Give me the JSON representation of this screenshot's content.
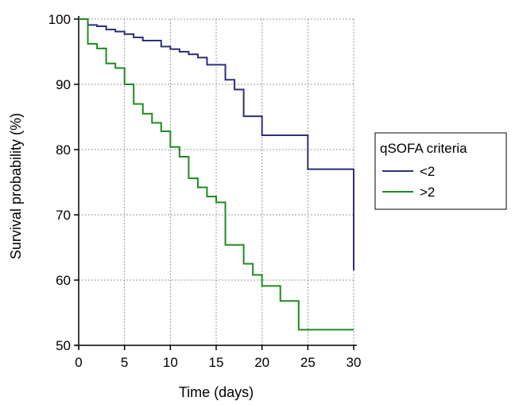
{
  "chart_data": {
    "type": "line",
    "step": true,
    "title": "",
    "xlabel": "Time (days)",
    "ylabel": "Survival probability (%)",
    "xlim": [
      0,
      30
    ],
    "ylim": [
      50,
      100
    ],
    "xticks": [
      0,
      5,
      10,
      15,
      20,
      25,
      30
    ],
    "yticks": [
      50,
      60,
      70,
      80,
      90,
      100
    ],
    "grid": true,
    "legend": {
      "title": "qSOFA criteria",
      "placement": "right"
    },
    "series": [
      {
        "name": "<2",
        "color": "#2e2e78",
        "x": [
          0,
          1,
          2,
          3,
          4,
          5,
          6,
          7,
          9,
          10,
          11,
          12,
          13,
          14,
          16,
          17,
          18,
          20,
          25,
          30,
          30
        ],
        "y": [
          100,
          99.1,
          98.9,
          98.4,
          98.1,
          97.7,
          97.2,
          96.7,
          95.8,
          95.4,
          95.0,
          94.6,
          94.1,
          93.0,
          90.7,
          89.2,
          85.1,
          82.2,
          77.0,
          77.0,
          61.5
        ]
      },
      {
        "name": ">2",
        "color": "#1e8c1e",
        "x": [
          0,
          1,
          2,
          3,
          4,
          5,
          6,
          7,
          8,
          9,
          10,
          11,
          12,
          13,
          14,
          15,
          16,
          18,
          19,
          20,
          22,
          24,
          30
        ],
        "y": [
          100,
          96.2,
          95.5,
          93.2,
          92.5,
          90.0,
          87.0,
          85.5,
          84.1,
          82.8,
          80.4,
          78.9,
          75.6,
          74.2,
          72.8,
          71.9,
          65.4,
          62.5,
          60.8,
          59.1,
          56.8,
          52.4,
          52.4
        ]
      }
    ]
  }
}
